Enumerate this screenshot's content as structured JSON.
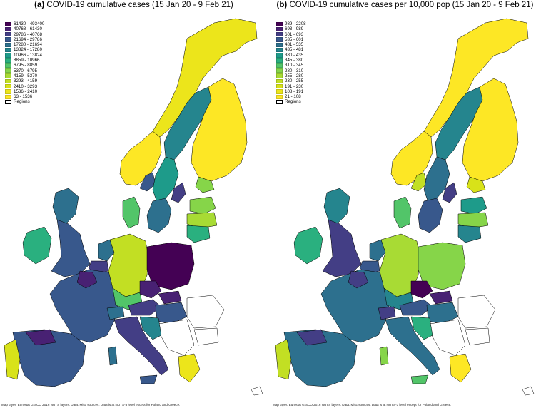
{
  "panels": [
    {
      "id": "a",
      "label": "(a)",
      "title": "COVID-19 cumulative cases (15 Jan 20 - 9 Feb 21)",
      "legend": [
        {
          "range": "61430 - 493400",
          "color": "#440154"
        },
        {
          "range": "40768 - 61430",
          "color": "#482173"
        },
        {
          "range": "29786 - 40768",
          "color": "#433e85"
        },
        {
          "range": "21694 - 29786",
          "color": "#38588c"
        },
        {
          "range": "17280 - 21694",
          "color": "#2d708e"
        },
        {
          "range": "13824 - 17280",
          "color": "#25858e"
        },
        {
          "range": "10966 - 13824",
          "color": "#1e9b8a"
        },
        {
          "range": "8859 - 10966",
          "color": "#2ab07f"
        },
        {
          "range": "6795 - 8859",
          "color": "#52c569"
        },
        {
          "range": "5370 - 6795",
          "color": "#86d549"
        },
        {
          "range": "4159 - 5370",
          "color": "#a8db34"
        },
        {
          "range": "3293 - 4159",
          "color": "#c2df23"
        },
        {
          "range": "2410 - 3293",
          "color": "#d8e219"
        },
        {
          "range": "1536 - 2410",
          "color": "#ece51b"
        },
        {
          "range": "63 - 1536",
          "color": "#fde725"
        },
        {
          "range": "Regions",
          "color": "#ffffff"
        }
      ],
      "footnote": "Map layer: Eurostat GISCO 2016 NUTS layers. Data: Misc sources. Data is at NUTS-3 level except for Poland and Greece."
    },
    {
      "id": "b",
      "label": "(b)",
      "title": "COVID-19 cumulative cases per 10,000 pop (15 Jan 20 - 9 Feb 21)",
      "legend": [
        {
          "range": "989 - 2208",
          "color": "#440154"
        },
        {
          "range": "693 - 989",
          "color": "#482173"
        },
        {
          "range": "601 - 693",
          "color": "#433e85"
        },
        {
          "range": "535 - 601",
          "color": "#38588c"
        },
        {
          "range": "481 - 535",
          "color": "#2d708e"
        },
        {
          "range": "435 - 481",
          "color": "#25858e"
        },
        {
          "range": "380 - 435",
          "color": "#1e9b8a"
        },
        {
          "range": "345 - 380",
          "color": "#2ab07f"
        },
        {
          "range": "310 - 345",
          "color": "#52c569"
        },
        {
          "range": "280 - 310",
          "color": "#86d549"
        },
        {
          "range": "255 - 280",
          "color": "#a8db34"
        },
        {
          "range": "230 - 255",
          "color": "#c2df23"
        },
        {
          "range": "191 - 230",
          "color": "#d8e219"
        },
        {
          "range": "108 - 191",
          "color": "#ece51b"
        },
        {
          "range": "21 - 108",
          "color": "#fde725"
        },
        {
          "range": "Regions",
          "color": "#ffffff"
        }
      ],
      "footnote": "Map layer: Eurostat GISCO 2016 NUTS layers. Data: Misc sources. Data is at NUTS-3 level except for Poland and Greece."
    }
  ]
}
